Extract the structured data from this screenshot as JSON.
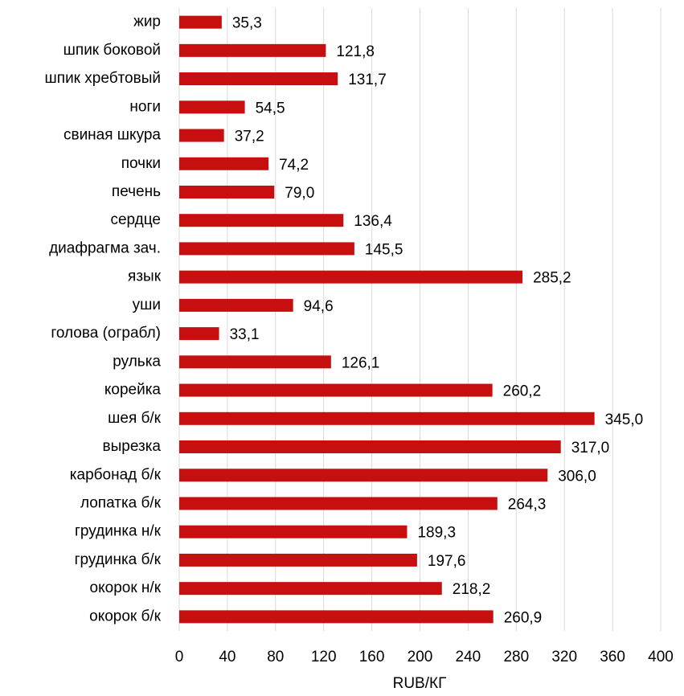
{
  "chart_data": {
    "type": "bar",
    "orientation": "horizontal",
    "x_label": "RUB/КГ",
    "categories": [
      "жир",
      "шпик боковой",
      "шпик хребтовый",
      "ноги",
      "свиная шкура",
      "почки",
      "печень",
      "сердце",
      "диафрагма зач.",
      "язык",
      "уши",
      "голова (ограбл)",
      "рулька",
      "корейка",
      "шея б/к",
      "вырезка",
      "карбонад б/к",
      "лопатка б/к",
      "грудинка н/к",
      "грудинка б/к",
      "окорок н/к",
      "окорок б/к"
    ],
    "values": [
      35.3,
      121.8,
      131.7,
      54.5,
      37.2,
      74.2,
      79.0,
      136.4,
      145.5,
      285.2,
      94.6,
      33.1,
      126.1,
      260.2,
      345.0,
      317.0,
      306.0,
      264.3,
      189.3,
      197.6,
      218.2,
      260.9
    ],
    "value_labels": [
      "35,3",
      "121,8",
      "131,7",
      "54,5",
      "37,2",
      "74,2",
      "79,0",
      "136,4",
      "145,5",
      "285,2",
      "94,6",
      "33,1",
      "126,1",
      "260,2",
      "345,0",
      "317,0",
      "306,0",
      "264,3",
      "189,3",
      "197,6",
      "218,2",
      "260,9"
    ],
    "color": "#c80f0f",
    "xlim": [
      0,
      400
    ],
    "xticks": [
      0,
      40,
      80,
      120,
      160,
      200,
      240,
      280,
      320,
      360,
      400
    ],
    "grid": true
  }
}
